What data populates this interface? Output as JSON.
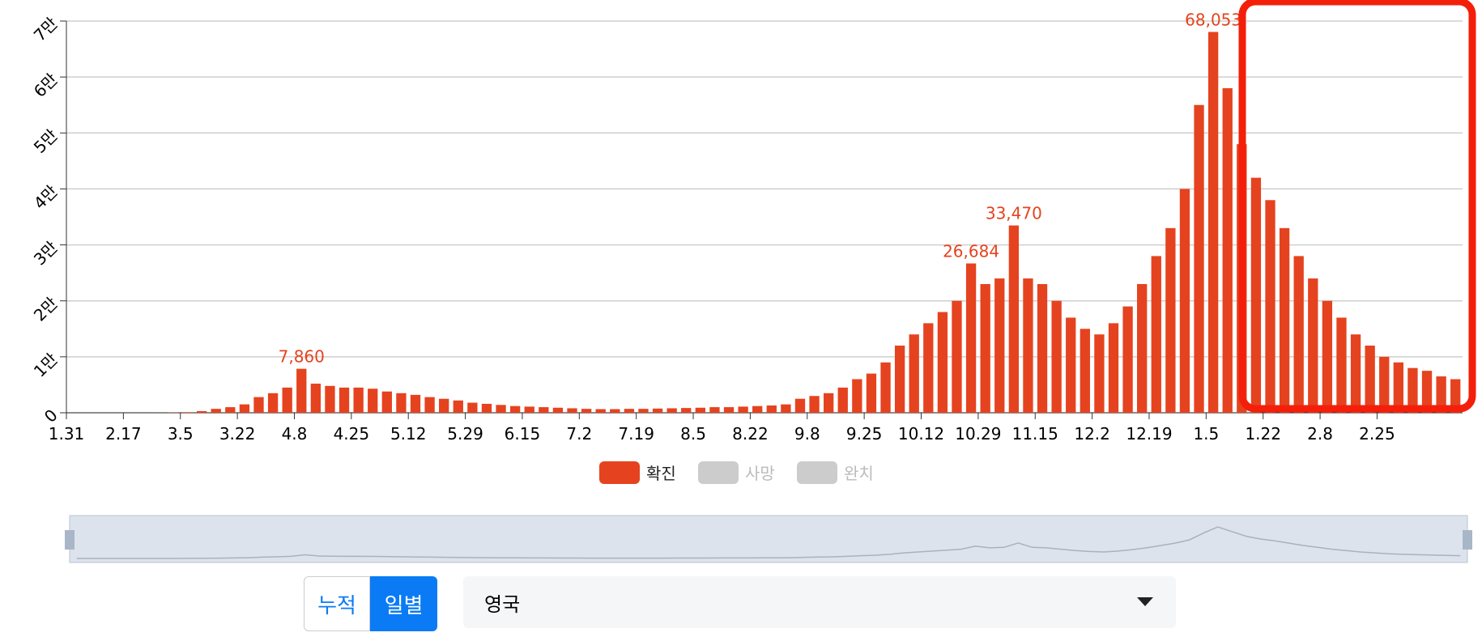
{
  "chart_data": {
    "type": "bar",
    "categories": [
      "1.31",
      null,
      null,
      null,
      "2.17",
      null,
      null,
      null,
      "3.5",
      null,
      null,
      null,
      "3.22",
      null,
      null,
      null,
      "4.8",
      null,
      null,
      null,
      "4.25",
      null,
      null,
      null,
      "5.12",
      null,
      null,
      null,
      "5.29",
      null,
      null,
      null,
      "6.15",
      null,
      null,
      null,
      "7.2",
      null,
      null,
      null,
      "7.19",
      null,
      null,
      null,
      "8.5",
      null,
      null,
      null,
      "8.22",
      null,
      null,
      null,
      "9.8",
      null,
      null,
      null,
      "9.25",
      null,
      null,
      null,
      "10.12",
      null,
      null,
      null,
      "10.29",
      null,
      null,
      null,
      "11.15",
      null,
      null,
      null,
      "12.2",
      null,
      null,
      null,
      "12.19",
      null,
      null,
      null,
      "1.5",
      null,
      null,
      null,
      "1.22",
      null,
      null,
      null,
      "2.8",
      null,
      null,
      null,
      "2.25",
      null,
      null,
      null,
      null,
      null
    ],
    "series": [
      {
        "name": "확진",
        "color": "#e5431f",
        "values": [
          0,
          0,
          0,
          0,
          0,
          0,
          10,
          50,
          100,
          300,
          700,
          1000,
          1500,
          2800,
          3500,
          4500,
          7860,
          5200,
          4800,
          4500,
          4500,
          4300,
          3800,
          3500,
          3200,
          2800,
          2500,
          2200,
          1800,
          1600,
          1400,
          1200,
          1100,
          1000,
          900,
          800,
          700,
          650,
          650,
          700,
          700,
          750,
          800,
          850,
          900,
          1000,
          1000,
          1100,
          1200,
          1300,
          1500,
          2500,
          3000,
          3500,
          4500,
          6000,
          7000,
          9000,
          12000,
          14000,
          16000,
          18000,
          20000,
          26684,
          23000,
          24000,
          33470,
          24000,
          23000,
          20000,
          17000,
          15000,
          14000,
          16000,
          19000,
          23000,
          28000,
          33000,
          40000,
          55000,
          68053,
          58000,
          48000,
          42000,
          38000,
          33000,
          28000,
          24000,
          20000,
          17000,
          14000,
          12000,
          10000,
          9000,
          8000,
          7500,
          6500,
          6000
        ],
        "value_labels": [
          null,
          null,
          null,
          null,
          null,
          null,
          null,
          null,
          null,
          null,
          null,
          null,
          null,
          null,
          null,
          null,
          "7,860",
          null,
          null,
          null,
          null,
          null,
          null,
          null,
          null,
          null,
          null,
          null,
          null,
          null,
          null,
          null,
          null,
          null,
          null,
          null,
          null,
          null,
          null,
          null,
          null,
          null,
          null,
          null,
          null,
          null,
          null,
          null,
          null,
          null,
          null,
          null,
          null,
          null,
          null,
          null,
          null,
          null,
          null,
          null,
          null,
          null,
          null,
          "26,684",
          null,
          null,
          "33,470",
          null,
          null,
          null,
          null,
          null,
          null,
          null,
          null,
          null,
          null,
          null,
          null,
          null,
          "68,053",
          null,
          null,
          null,
          null,
          null,
          null,
          null,
          null,
          null,
          null,
          null,
          null,
          null,
          null,
          null,
          null,
          null
        ]
      }
    ],
    "legend": [
      {
        "name": "확진",
        "color": "#e5431f"
      },
      {
        "name": "사망",
        "color": "#cccccc"
      },
      {
        "name": "완치",
        "color": "#cccccc"
      }
    ],
    "ylim": [
      0,
      70000
    ],
    "yticks": [
      0,
      {
        "value": 10000,
        "label": "1만"
      },
      {
        "value": 20000,
        "label": "2만"
      },
      {
        "value": 30000,
        "label": "3만"
      },
      {
        "value": 40000,
        "label": "4만"
      },
      {
        "value": 50000,
        "label": "5만"
      },
      {
        "value": 60000,
        "label": "6만"
      },
      {
        "value": 70000,
        "label": "7만"
      }
    ],
    "grid": true
  },
  "controls": {
    "buttons": [
      "누적",
      "일별"
    ],
    "selected": "영국"
  }
}
